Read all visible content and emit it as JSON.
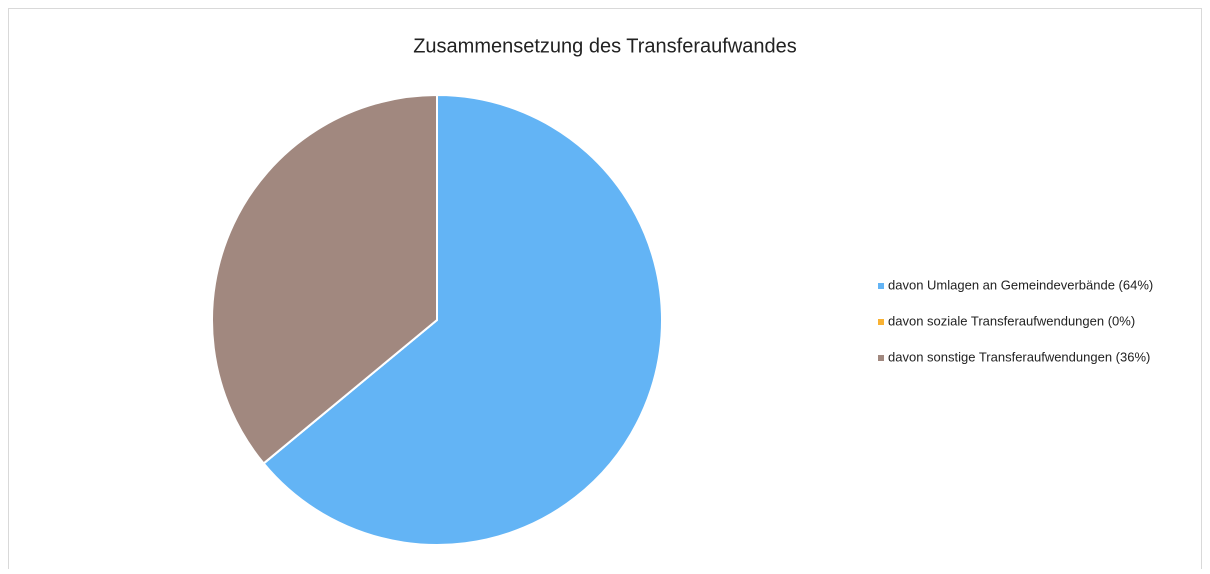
{
  "chart_data": {
    "type": "pie",
    "title": "Zusammensetzung des Transferaufwandes",
    "categories": [
      "davon Umlagen an Gemeindeverbände (64%)",
      "davon soziale Transferaufwendungen (0%)",
      "davon sonstige Transferaufwendungen (36%)"
    ],
    "values": [
      64,
      0,
      36
    ],
    "colors": [
      "#63b4f5",
      "#f9b233",
      "#a1887f"
    ],
    "legend": "right"
  }
}
